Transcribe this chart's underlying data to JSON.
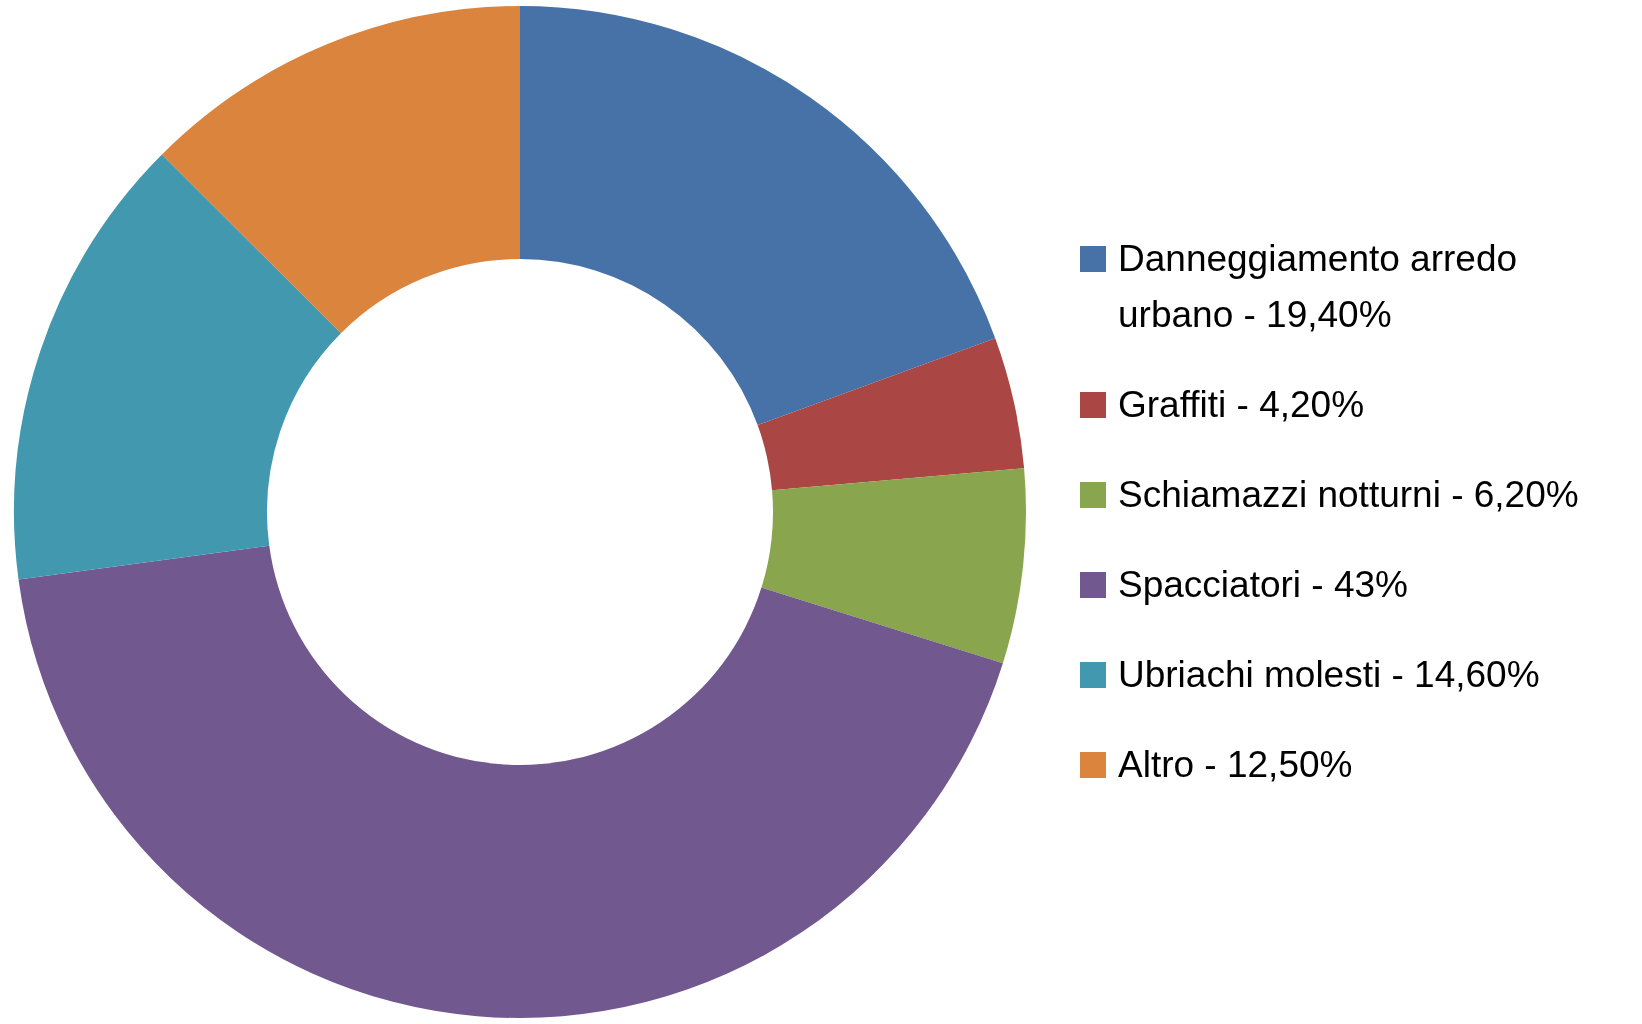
{
  "chart_data": {
    "type": "donut",
    "categories": [
      "Danneggiamento arredo urbano - 19,40%",
      "Graffiti - 4,20%",
      "Schiamazzi notturni - 6,20%",
      "Spacciatori - 43%",
      "Ubriachi molesti - 14,60%",
      "Altro - 12,50%"
    ],
    "values": [
      19.4,
      4.2,
      6.2,
      43,
      14.6,
      12.5
    ],
    "colors": [
      "#4672a7",
      "#aa4644",
      "#89a54e",
      "#71588f",
      "#4198af",
      "#db843d"
    ],
    "legend": "right"
  }
}
